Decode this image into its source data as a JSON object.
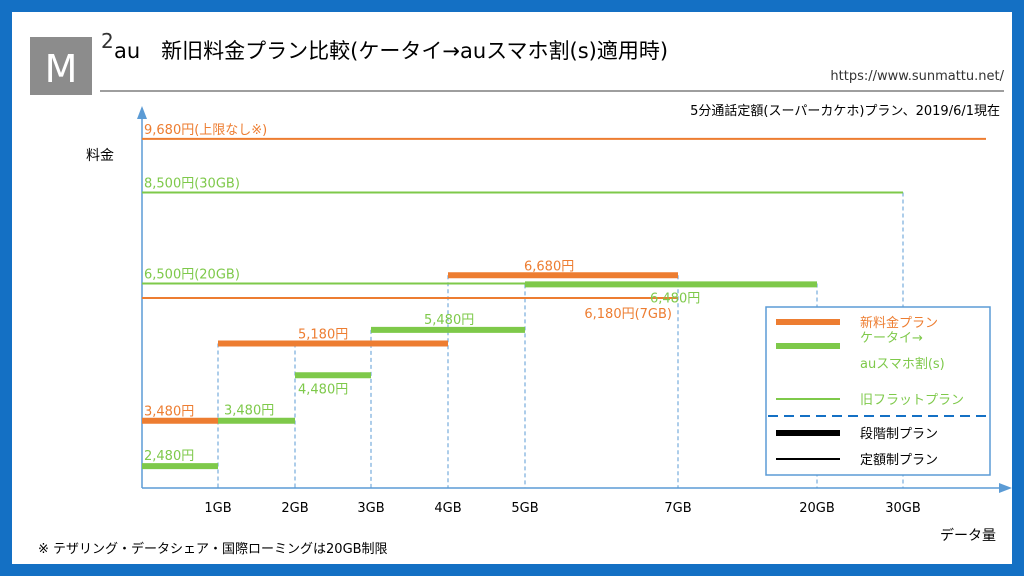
{
  "colors": {
    "frame": "#1470c4",
    "orange": "#ed7d31",
    "green": "#7ec94a",
    "axis": "#5b9bd5",
    "logo_bg": "#8c8c8c",
    "black": "#000000"
  },
  "header": {
    "logo_letter": "M",
    "logo_superscript": "2",
    "title": "au　新旧料金プラン比較(ケータイ→auスマホ割(s)適用時)",
    "url": "https://www.sunmattu.net/",
    "subtitle": "5分通話定額(スーパーカケホ)プラン、2019/6/1現在"
  },
  "footnote": "※ テザリング・データシェア・国際ローミングは20GB制限",
  "chart_data": {
    "type": "line",
    "ylabel": "料金",
    "xlabel": "データ量",
    "x_ticks": [
      "1GB",
      "2GB",
      "3GB",
      "4GB",
      "5GB",
      "7GB",
      "20GB",
      "30GB"
    ],
    "flat_segments": [
      {
        "key": "old_unlimited",
        "series": "旧フラットプラン",
        "color": "orange",
        "x_from": "0GB",
        "x_to": "上限なし",
        "value": 9680,
        "label": "9,680円(上限なし※)"
      },
      {
        "key": "old_30gb",
        "series": "旧フラットプラン",
        "color": "green",
        "x_from": "0GB",
        "x_to": "30GB",
        "value": 8500,
        "label": "8,500円(30GB)"
      },
      {
        "key": "old_20gb",
        "series": "旧フラットプラン",
        "color": "green",
        "x_from": "0GB",
        "x_to": "20GB",
        "value": 6500,
        "label": "6,500円(20GB)"
      },
      {
        "key": "old_7gb",
        "series": "旧フラットプラン",
        "color": "orange",
        "x_from": "0GB",
        "x_to": "7GB",
        "value": 6180,
        "label": "6,180円(7GB)"
      }
    ],
    "new_plan": {
      "name": "新料金プラン",
      "steps": [
        {
          "x_from": "0GB",
          "x_to": "1GB",
          "value": 3480,
          "label": "3,480円"
        },
        {
          "x_from": "1GB",
          "x_to": "4GB",
          "value": 5180,
          "label": "5,180円"
        },
        {
          "x_from": "4GB",
          "x_to": "7GB",
          "value": 6680,
          "label": "6,680円"
        }
      ]
    },
    "smartwari": {
      "name": "ケータイ→auスマホ割(s)",
      "steps": [
        {
          "x_from": "0GB",
          "x_to": "1GB",
          "value": 2480,
          "label": "2,480円"
        },
        {
          "x_from": "1GB",
          "x_to": "2GB",
          "value": 3480,
          "label": "3,480円"
        },
        {
          "x_from": "2GB",
          "x_to": "3GB",
          "value": 4480,
          "label": "4,480円"
        },
        {
          "x_from": "3GB",
          "x_to": "5GB",
          "value": 5480,
          "label": "5,480円"
        },
        {
          "x_from": "5GB",
          "x_to": "20GB",
          "value": 6480,
          "label": "6,480円"
        }
      ]
    },
    "legend": {
      "placement": "bottom-right",
      "items": [
        {
          "label": "新料金プラン",
          "color": "orange",
          "style": "thick"
        },
        {
          "label": "ケータイ→",
          "label2": "auスマホ割(s)",
          "color": "green",
          "style": "thick"
        },
        {
          "label": "旧フラットプラン",
          "color": "green",
          "style": "thin"
        },
        {
          "label": "段階制プラン",
          "color": "black",
          "style": "thick"
        },
        {
          "label": "定額制プラン",
          "color": "black",
          "style": "thin"
        }
      ]
    }
  }
}
